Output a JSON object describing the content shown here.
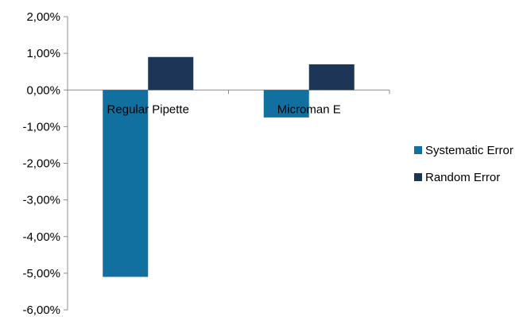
{
  "chart_data": {
    "type": "bar",
    "categories": [
      "Regular Pipette",
      "Microman E"
    ],
    "series": [
      {
        "name": "Systematic Error",
        "values": [
          -5.1,
          -0.75
        ],
        "color": "#1170A0"
      },
      {
        "name": "Random Error",
        "values": [
          0.9,
          0.7
        ],
        "color": "#1D3557"
      }
    ],
    "ylim": [
      -6,
      2
    ],
    "yticks": [
      2,
      1,
      0,
      -1,
      -2,
      -3,
      -4,
      -5,
      -6
    ],
    "ytick_labels": [
      "2,00%",
      "1,00%",
      "0,00%",
      "-1,00%",
      "-2,00%",
      "-3,00%",
      "-4,00%",
      "-5,00%",
      "-6,00%"
    ],
    "legend_position": "right",
    "grid": false
  }
}
